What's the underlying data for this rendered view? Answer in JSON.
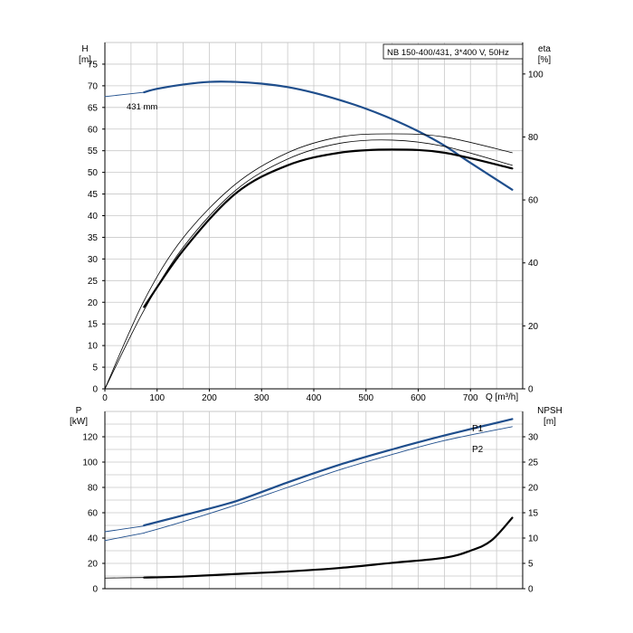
{
  "title_box": "NB 150-400/431, 3*400 V, 50Hz",
  "curve_label": "431 mm",
  "colors": {
    "blue": "#1f4e8c",
    "black": "#000000",
    "grid": "#c8c8c8",
    "axis": "#000000"
  },
  "chart_data": [
    {
      "type": "line",
      "panel": "upper",
      "ylabel_left": "H",
      "ylabel_left_unit": "[m]",
      "ylabel_right": "eta",
      "ylabel_right_unit": "[%]",
      "xlabel": "Q [m³/h]",
      "xlim": [
        0,
        800
      ],
      "ylim_left": [
        0,
        80
      ],
      "ylim_right": [
        0,
        110
      ],
      "x_ticks": [
        "0",
        "100",
        "200",
        "300",
        "400",
        "500",
        "600",
        "700"
      ],
      "y_ticks_left": [
        "0",
        "5",
        "10",
        "15",
        "20",
        "25",
        "30",
        "35",
        "40",
        "45",
        "50",
        "55",
        "60",
        "65",
        "70",
        "75"
      ],
      "y_ticks_right": [
        "0",
        "20",
        "40",
        "60",
        "80",
        "100"
      ],
      "series": [
        {
          "axis": "left",
          "style": "thin-blue",
          "x": [
            0,
            75
          ],
          "y": [
            67.5,
            68.5
          ]
        },
        {
          "name": "431 mm",
          "axis": "left",
          "style": "thick-blue",
          "x": [
            75,
            100,
            150,
            200,
            250,
            300,
            350,
            400,
            450,
            500,
            550,
            600,
            650,
            700,
            780
          ],
          "y": [
            68.5,
            69.3,
            70.3,
            70.9,
            70.9,
            70.5,
            69.7,
            68.4,
            66.7,
            64.7,
            62.3,
            59.5,
            56.2,
            52.2,
            46
          ]
        },
        {
          "axis": "right",
          "style": "thin-black",
          "x": [
            0,
            75,
            150,
            250,
            350,
            450,
            550,
            650,
            780
          ],
          "y": [
            0,
            25,
            45,
            63,
            73,
            78,
            79,
            77,
            71
          ]
        },
        {
          "axis": "right",
          "style": "thin-black",
          "x": [
            0,
            75,
            150,
            250,
            350,
            450,
            550,
            650,
            780
          ],
          "y": [
            0,
            28,
            48,
            65,
            75,
            80,
            81,
            80,
            75
          ]
        },
        {
          "axis": "right",
          "style": "thick-black",
          "x": [
            75,
            150,
            250,
            350,
            450,
            550,
            650,
            780
          ],
          "y": [
            26,
            44,
            62,
            71,
            75,
            76,
            75,
            70
          ]
        }
      ]
    },
    {
      "type": "line",
      "panel": "lower",
      "ylabel_left": "P",
      "ylabel_left_unit": "[kW]",
      "ylabel_right": "NPSH",
      "ylabel_right_unit": "[m]",
      "xlim": [
        0,
        800
      ],
      "ylim_left": [
        0,
        140
      ],
      "ylim_right": [
        0,
        35
      ],
      "y_ticks_left": [
        "0",
        "20",
        "40",
        "60",
        "80",
        "100",
        "120"
      ],
      "y_ticks_right": [
        "0",
        "5",
        "10",
        "15",
        "20",
        "25",
        "30"
      ],
      "series": [
        {
          "axis": "left",
          "style": "thin-blue",
          "x": [
            0,
            75
          ],
          "y": [
            45,
            49.5
          ]
        },
        {
          "axis": "left",
          "style": "thin-blue",
          "x": [
            0,
            75
          ],
          "y": [
            38,
            44
          ]
        },
        {
          "name": "P1",
          "axis": "left",
          "style": "thick-blue",
          "x": [
            75,
            150,
            250,
            350,
            450,
            550,
            650,
            780
          ],
          "y": [
            50,
            58,
            69,
            84,
            98,
            110,
            121,
            134
          ]
        },
        {
          "name": "P2",
          "axis": "left",
          "style": "thin-blue",
          "x": [
            75,
            150,
            250,
            350,
            450,
            550,
            650,
            780
          ],
          "y": [
            44,
            53,
            66,
            80,
            94,
            106,
            117,
            128
          ]
        },
        {
          "axis": "right",
          "style": "thick-black",
          "x": [
            75,
            150,
            250,
            350,
            450,
            550,
            650,
            700,
            740,
            780
          ],
          "y": [
            2.2,
            2.4,
            2.9,
            3.4,
            4.1,
            5.1,
            6.1,
            7.5,
            9.5,
            14
          ]
        },
        {
          "axis": "right",
          "style": "thin-black",
          "x": [
            0,
            75
          ],
          "y": [
            2.1,
            2.2
          ]
        }
      ]
    }
  ]
}
